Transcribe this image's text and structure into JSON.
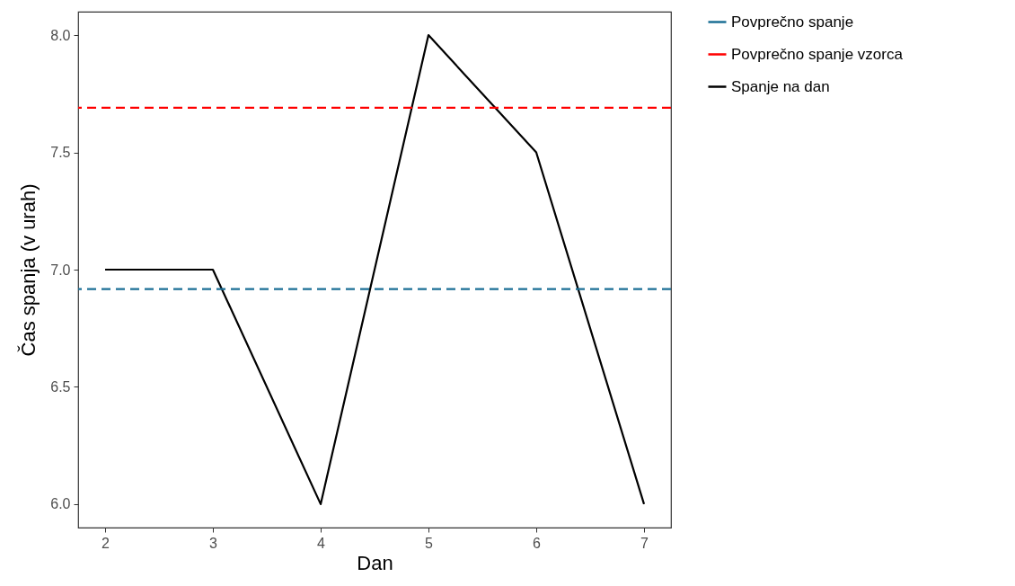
{
  "chart_data": {
    "type": "line",
    "xlabel": "Dan",
    "ylabel": "Čas spanja (v urah)",
    "x": [
      2,
      3,
      4,
      5,
      6,
      7
    ],
    "series": [
      {
        "name": "Spanje na dan",
        "color": "#000000",
        "values": [
          7,
          7,
          6,
          8,
          7.5,
          6
        ]
      }
    ],
    "ref_lines": [
      {
        "axis": "y",
        "value": 6.917,
        "label": "Povprečno spanje",
        "color": "#1b6f95",
        "line_style": "dashed"
      },
      {
        "axis": "y",
        "value": 7.69,
        "label": "Povprečno spanje vzorca",
        "color": "#ff0000",
        "line_style": "dashed"
      }
    ],
    "xlim": [
      1.75,
      7.25
    ],
    "xticks": [
      2,
      3,
      4,
      5,
      6,
      7
    ],
    "ylim": [
      5.9,
      8.1
    ],
    "yticks": [
      {
        "value": 6,
        "label": "6.0"
      },
      {
        "value": 6.5,
        "label": "6.5"
      },
      {
        "value": 7,
        "label": "7.0"
      },
      {
        "value": 7.5,
        "label": "7.5"
      },
      {
        "value": 8,
        "label": "8.0"
      }
    ],
    "grid": false,
    "legend": "right",
    "line_style": "solid",
    "marker": "none"
  }
}
